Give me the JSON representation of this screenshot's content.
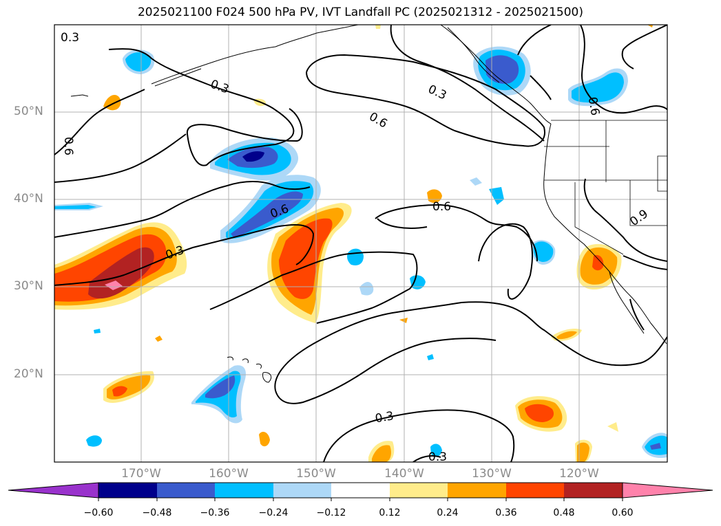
{
  "title": "2025021100 F024 500 hPa PV, IVT Landfall PC (2025021312 - 2025021500)",
  "lat_labels": [
    "50°N",
    "40°N",
    "30°N",
    "20°N"
  ],
  "lon_labels": [
    "170°W",
    "160°W",
    "150°W",
    "140°W",
    "130°W",
    "120°W"
  ],
  "colorbar": {
    "colors": [
      "#9932cc",
      "#00008b",
      "#3a5bcd",
      "#00bfff",
      "#add8f7",
      "#ffffff",
      "#ffec8b",
      "#ffa500",
      "#ff4500",
      "#b22222",
      "#ff82ab"
    ],
    "tick_labels": [
      "−0.60",
      "−0.48",
      "−0.36",
      "−0.24",
      "−0.12",
      "0.12",
      "0.24",
      "0.36",
      "0.48",
      "0.60"
    ]
  },
  "contour_labels": [
    "0.3",
    "0.3",
    "0.6",
    "0.3",
    "0.6",
    "0.6",
    "0.6",
    "0.3",
    "0.6",
    "0.9",
    "0.3",
    "0.3"
  ]
}
